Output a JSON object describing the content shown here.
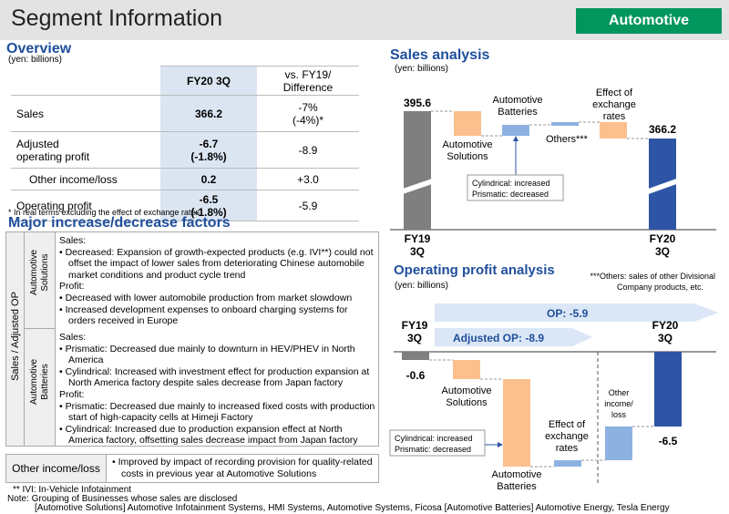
{
  "header": {
    "title": "Segment Information",
    "badge": "Automotive"
  },
  "overview": {
    "title": "Overview",
    "unit": "(yen: billions)",
    "col_fy": "FY20 3Q",
    "col_diff_line1": "vs. FY19/",
    "col_diff_line2": "Difference",
    "rows": [
      {
        "label1": "Sales",
        "label2": "",
        "fy1": "366.2",
        "fy2": "",
        "diff1": "-7%",
        "diff2": "(-4%)*"
      },
      {
        "label1": "Adjusted",
        "label2": "operating profit",
        "fy1": "-6.7",
        "fy2": "(-1.8%)",
        "diff1": "-8.9",
        "diff2": ""
      },
      {
        "label1": "Other income/loss",
        "label2": "",
        "fy1": "0.2",
        "fy2": "",
        "diff1": "+3.0",
        "diff2": ""
      },
      {
        "label1": "Operating profit",
        "label2": "",
        "fy1": "-6.5",
        "fy2": "(-1.8%)",
        "diff1": "-5.9",
        "diff2": ""
      }
    ],
    "note": "* In real terms excluding the effect of exchange rates"
  },
  "factors": {
    "title": "Major increase/decrease factors",
    "side_label": "Sales / Adjusted OP",
    "groups": [
      {
        "label1": "Automotive",
        "label2": "Solutions",
        "lines": [
          "Sales:",
          "• Decreased: Expansion of growth-expected products (e.g. IVI**) could not offset the impact of lower sales from deteriorating Chinese automobile market conditions and product cycle trend",
          "Profit:",
          "• Decreased with lower automobile production from market slowdown",
          "• Increased development expenses to onboard charging systems for orders received in Europe"
        ]
      },
      {
        "label1": "Automotive",
        "label2": "Batteries",
        "lines": [
          "Sales:",
          "• Prismatic: Decreased due mainly to downturn in HEV/PHEV in North America",
          "• Cylindrical: Increased with investment effect for production expansion at North America factory despite sales decrease from Japan factory",
          "Profit:",
          "• Prismatic: Decreased due mainly to increased fixed costs with production start of high-capacity cells at Himeji Factory",
          "• Cylindrical: Increased due to production expansion effect at North America factory, offsetting sales decrease impact from Japan factory"
        ]
      }
    ],
    "other_label": "Other income/loss",
    "other_text": "• Improved by impact of recording provision for quality-related costs in previous year at Automotive Solutions"
  },
  "footnotes": {
    "ivi": "** IVI: In-Vehicle Infotainment",
    "note": "Note: Grouping of Businesses whose sales are disclosed",
    "groups": "[Automotive Solutions] Automotive Infotainment Systems, HMI Systems, Automotive Systems, Ficosa    [Automotive Batteries] Automotive Energy, Tesla Energy"
  },
  "sales_analysis": {
    "title": "Sales analysis",
    "unit": "(yen: billions)",
    "start_value": "395.6",
    "end_value": "366.2",
    "start_label1": "FY19",
    "start_label2": "3Q",
    "end_label1": "FY20",
    "end_label2": "3Q",
    "sol_label1": "Automotive",
    "sol_label2": "Solutions",
    "bat_label1": "Automotive",
    "bat_label2": "Batteries",
    "others_label": "Others***",
    "fx_label1": "Effect of",
    "fx_label2": "exchange",
    "fx_label3": "rates",
    "callout1": "Cylindrical: increased",
    "callout2": "Prismatic: decreased",
    "others_note1": "***Others: sales of other Divisional",
    "others_note2": "Company products, etc."
  },
  "op_analysis": {
    "title": "Operating profit analysis",
    "unit": "(yen: billions)",
    "start_label1": "FY19",
    "start_label2": "3Q",
    "end_label1": "FY20",
    "end_label2": "3Q",
    "start_value": "-0.6",
    "end_value": "-6.5",
    "op_arrow": "OP: -5.9",
    "adj_arrow": "Adjusted OP: -8.9",
    "sol_label1": "Automotive",
    "sol_label2": "Solutions",
    "bat_label1": "Automotive",
    "bat_label2": "Batteries",
    "fx_label1": "Effect of",
    "fx_label2": "exchange",
    "fx_label3": "rates",
    "other_label1": "Other",
    "other_label2": "income/",
    "other_label3": "loss",
    "callout1": "Cylindrical: increased",
    "callout2": "Prismatic: decreased"
  },
  "colors": {
    "title_blue": "#1f4e9c",
    "badge_green": "#00965e",
    "grey_bar": "#7f7f7f",
    "blue_bar": "#2e55a5",
    "orange_bar": "#fbc08e",
    "light_blue_bar": "#8db2e2"
  }
}
